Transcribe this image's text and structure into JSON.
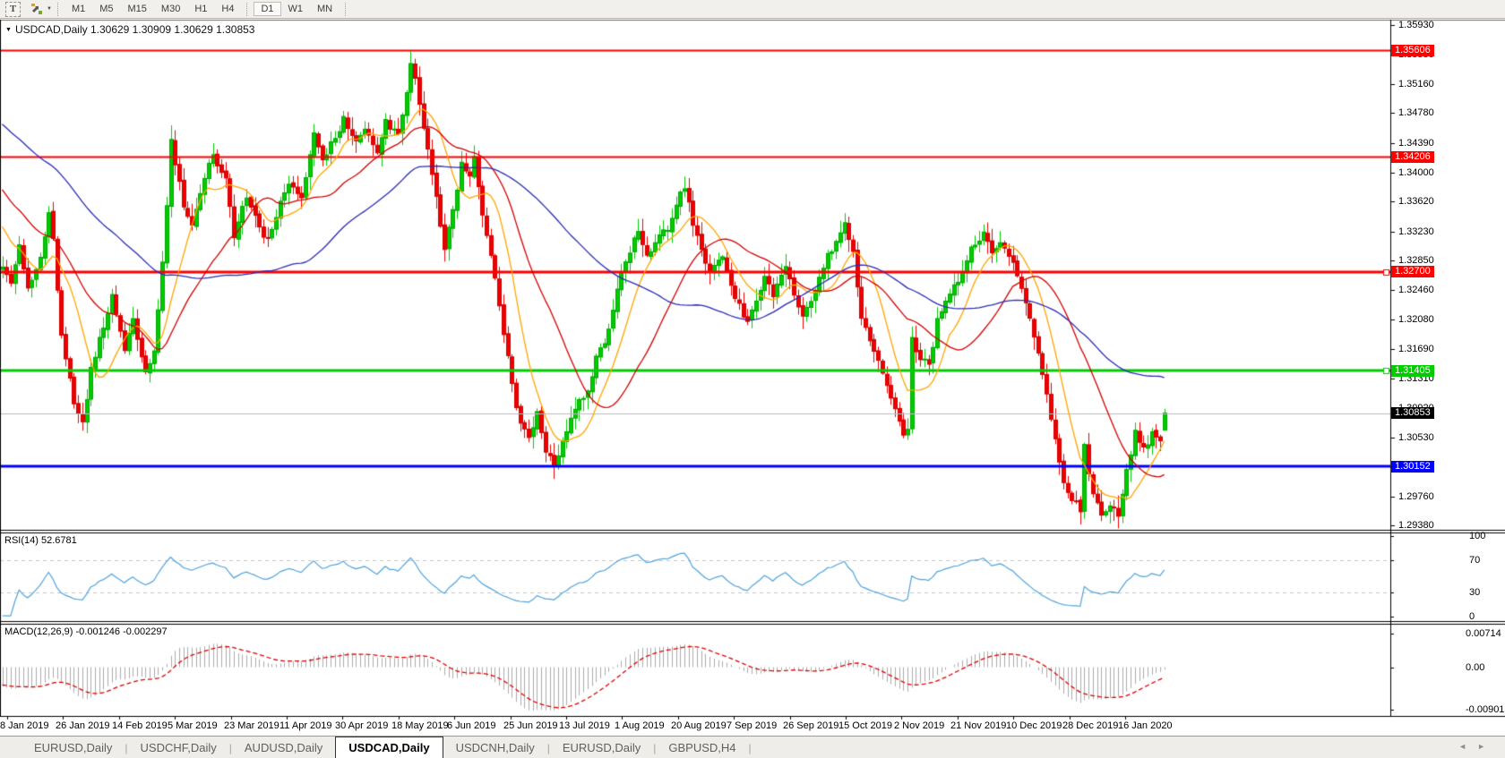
{
  "toolbar": {
    "text_tool_label": "T",
    "dropdown_caret": "▼",
    "timeframes": [
      {
        "label": "M1",
        "active": false
      },
      {
        "label": "M5",
        "active": false
      },
      {
        "label": "M15",
        "active": false
      },
      {
        "label": "M30",
        "active": false
      },
      {
        "label": "H1",
        "active": false
      },
      {
        "label": "H4",
        "active": false
      },
      {
        "label": "D1",
        "active": true
      },
      {
        "label": "W1",
        "active": false
      },
      {
        "label": "MN",
        "active": false
      }
    ]
  },
  "chart_header": {
    "caret": "▼",
    "symbol": "USDCAD,Daily",
    "ohlc_text": "1.30629 1.30909 1.30629 1.30853"
  },
  "price_axis": {
    "ticks": [
      "1.35930",
      "1.35550",
      "1.35160",
      "1.34780",
      "1.34390",
      "1.34000",
      "1.33620",
      "1.33230",
      "1.32850",
      "1.32460",
      "1.32080",
      "1.31690",
      "1.31310",
      "1.30920",
      "1.30530",
      "1.30140",
      "1.29760",
      "1.29380"
    ]
  },
  "date_axis": {
    "labels": [
      "8 Jan 2019",
      "26 Jan 2019",
      "14 Feb 2019",
      "5 Mar 2019",
      "23 Mar 2019",
      "11 Apr 2019",
      "30 Apr 2019",
      "18 May 2019",
      "6 Jun 2019",
      "25 Jun 2019",
      "13 Jul 2019",
      "1 Aug 2019",
      "20 Aug 2019",
      "7 Sep 2019",
      "26 Sep 2019",
      "15 Oct 2019",
      "2 Nov 2019",
      "21 Nov 2019",
      "10 Dec 2019",
      "28 Dec 2019",
      "16 Jan 2020"
    ]
  },
  "indicators": {
    "rsi": {
      "name": "RSI(14)",
      "value": "52.6781",
      "color": "#4FA3DC",
      "level_line_color": "#C6C6C6",
      "axis": [
        {
          "label": "100",
          "v": 100
        },
        {
          "label": "70",
          "v": 70
        },
        {
          "label": "30",
          "v": 30
        },
        {
          "label": "0",
          "v": 0
        }
      ],
      "dashed_levels": [
        70,
        30
      ]
    },
    "macd": {
      "name": "MACD(12,26,9)",
      "values": "-0.001246 -0.002297",
      "histogram_color": "#ACACAC",
      "signal_color": "#E00000",
      "axis": [
        {
          "label": "0.00714",
          "v": 0.00714
        },
        {
          "label": "0.00",
          "v": 0
        },
        {
          "label": "-0.0090150",
          "v": -0.009015
        }
      ]
    }
  },
  "tabs": {
    "separator": "|",
    "scroll_left": "◄",
    "scroll_right": "►",
    "items": [
      {
        "label": "EURUSD,Daily",
        "active": false
      },
      {
        "label": "USDCHF,Daily",
        "active": false
      },
      {
        "label": "AUDUSD,Daily",
        "active": false
      },
      {
        "label": "USDCAD,Daily",
        "active": true
      },
      {
        "label": "USDCNH,Daily",
        "active": false
      },
      {
        "label": "EURUSD,Daily",
        "active": false
      },
      {
        "label": "GBPUSD,H4",
        "active": false
      }
    ]
  },
  "chart_data": {
    "type": "candlestick",
    "symbol": "USDCAD",
    "timeframe": "Daily",
    "current_bar": {
      "open": 1.30629,
      "high": 1.30909,
      "low": 1.30629,
      "close": 1.30853
    },
    "bars_count": 277,
    "up_color": "#00CC00",
    "down_color": "#EE0000",
    "up_stroke": "#00A800",
    "down_stroke": "#D40000",
    "y_axis": {
      "price_at_top": 1.35993,
      "price_per_pixel": 0.0001172
    },
    "horizontal_lines": [
      {
        "price": 1.35606,
        "label": "1.35606",
        "color": "#FE0000",
        "thickness": 2,
        "badge": true,
        "marker": false
      },
      {
        "price": 1.34206,
        "label": "1.34206",
        "color": "#FE0000",
        "thickness": 2,
        "badge": true,
        "marker": false
      },
      {
        "price": 1.327,
        "label": "1.32700",
        "color": "#FE0000",
        "thickness": 3,
        "badge": true,
        "marker": true
      },
      {
        "price": 1.31405,
        "label": "1.31405",
        "color": "#00CC00",
        "thickness": 3,
        "badge": true,
        "marker": true
      },
      {
        "price": 1.30152,
        "label": "1.30152",
        "color": "#0000FE",
        "thickness": 3,
        "badge": true,
        "marker": false
      }
    ],
    "current_price": {
      "value": 1.30853,
      "label": "1.30853",
      "line_color": "#BBBBBB",
      "badge_color": "#000000"
    },
    "moving_averages": [
      {
        "period": 10,
        "color": "#FFA500"
      },
      {
        "period": 25,
        "color": "#D40000"
      },
      {
        "period": 60,
        "color": "#2B2BB8"
      }
    ],
    "price_keyframes": [
      [
        0,
        1.328
      ],
      [
        2,
        1.3255
      ],
      [
        4,
        1.3305
      ],
      [
        6,
        1.325
      ],
      [
        9,
        1.329
      ],
      [
        11,
        1.335
      ],
      [
        12,
        1.331
      ],
      [
        14,
        1.319
      ],
      [
        17,
        1.31
      ],
      [
        19,
        1.307
      ],
      [
        21,
        1.314
      ],
      [
        24,
        1.32
      ],
      [
        26,
        1.324
      ],
      [
        29,
        1.3165
      ],
      [
        31,
        1.321
      ],
      [
        34,
        1.3135
      ],
      [
        36,
        1.3165
      ],
      [
        38,
        1.328
      ],
      [
        40,
        1.344
      ],
      [
        43,
        1.336
      ],
      [
        45,
        1.333
      ],
      [
        48,
        1.3395
      ],
      [
        50,
        1.342
      ],
      [
        53,
        1.339
      ],
      [
        55,
        1.3315
      ],
      [
        58,
        1.337
      ],
      [
        60,
        1.334
      ],
      [
        63,
        1.331
      ],
      [
        66,
        1.3365
      ],
      [
        68,
        1.339
      ],
      [
        71,
        1.337
      ],
      [
        74,
        1.345
      ],
      [
        76,
        1.342
      ],
      [
        79,
        1.3445
      ],
      [
        81,
        1.347
      ],
      [
        84,
        1.344
      ],
      [
        86,
        1.3455
      ],
      [
        89,
        1.343
      ],
      [
        91,
        1.3465
      ],
      [
        94,
        1.345
      ],
      [
        96,
        1.35
      ],
      [
        97,
        1.3545
      ],
      [
        99,
        1.3495
      ],
      [
        101,
        1.343
      ],
      [
        103,
        1.337
      ],
      [
        105,
        1.33
      ],
      [
        107,
        1.335
      ],
      [
        109,
        1.3415
      ],
      [
        111,
        1.3395
      ],
      [
        112,
        1.342
      ],
      [
        114,
        1.334
      ],
      [
        117,
        1.326
      ],
      [
        119,
        1.319
      ],
      [
        121,
        1.312
      ],
      [
        123,
        1.307
      ],
      [
        125,
        1.3055
      ],
      [
        127,
        1.3085
      ],
      [
        129,
        1.3035
      ],
      [
        131,
        1.3015
      ],
      [
        134,
        1.306
      ],
      [
        136,
        1.309
      ],
      [
        139,
        1.3115
      ],
      [
        141,
        1.3155
      ],
      [
        144,
        1.3195
      ],
      [
        146,
        1.325
      ],
      [
        149,
        1.33
      ],
      [
        151,
        1.332
      ],
      [
        153,
        1.329
      ],
      [
        155,
        1.331
      ],
      [
        158,
        1.333
      ],
      [
        160,
        1.336
      ],
      [
        162,
        1.338
      ],
      [
        164,
        1.3335
      ],
      [
        166,
        1.3295
      ],
      [
        168,
        1.3268
      ],
      [
        171,
        1.329
      ],
      [
        173,
        1.325
      ],
      [
        175,
        1.3228
      ],
      [
        177,
        1.3205
      ],
      [
        179,
        1.3235
      ],
      [
        181,
        1.3262
      ],
      [
        183,
        1.324
      ],
      [
        186,
        1.3272
      ],
      [
        188,
        1.3242
      ],
      [
        190,
        1.321
      ],
      [
        192,
        1.3232
      ],
      [
        194,
        1.3268
      ],
      [
        197,
        1.33
      ],
      [
        200,
        1.333
      ],
      [
        202,
        1.3295
      ],
      [
        204,
        1.321
      ],
      [
        206,
        1.3175
      ],
      [
        208,
        1.3152
      ],
      [
        211,
        1.3105
      ],
      [
        214,
        1.3058
      ],
      [
        215,
        1.3068
      ],
      [
        216,
        1.318
      ],
      [
        218,
        1.3158
      ],
      [
        220,
        1.3145
      ],
      [
        222,
        1.3208
      ],
      [
        225,
        1.324
      ],
      [
        227,
        1.3258
      ],
      [
        229,
        1.3288
      ],
      [
        231,
        1.3308
      ],
      [
        233,
        1.3318
      ],
      [
        235,
        1.3298
      ],
      [
        237,
        1.331
      ],
      [
        240,
        1.3288
      ],
      [
        242,
        1.3252
      ],
      [
        244,
        1.3215
      ],
      [
        246,
        1.3165
      ],
      [
        248,
        1.311
      ],
      [
        250,
        1.3052
      ],
      [
        252,
        1.2995
      ],
      [
        254,
        1.2972
      ],
      [
        256,
        1.2958
      ],
      [
        257,
        1.304
      ],
      [
        259,
        1.2975
      ],
      [
        261,
        1.2955
      ],
      [
        263,
        1.2968
      ],
      [
        265,
        1.2948
      ],
      [
        267,
        1.301
      ],
      [
        269,
        1.3058
      ],
      [
        271,
        1.304
      ],
      [
        273,
        1.3058
      ],
      [
        275,
        1.305
      ],
      [
        276,
        1.30853
      ]
    ],
    "wick_extremes": [
      {
        "i": 40,
        "high": 1.3462
      },
      {
        "i": 97,
        "high": 1.356
      },
      {
        "i": 131,
        "low": 1.2999
      },
      {
        "i": 200,
        "high": 1.3347
      },
      {
        "i": 265,
        "low": 1.2941
      }
    ]
  }
}
